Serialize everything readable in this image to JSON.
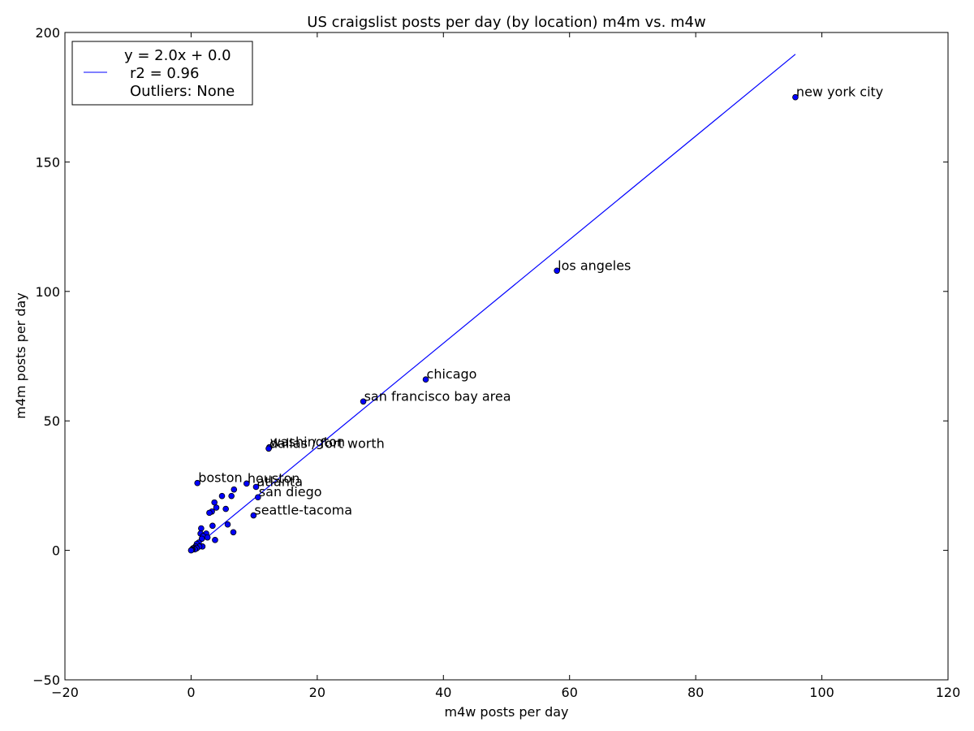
{
  "chart_data": {
    "type": "scatter",
    "title": "US craigslist posts per day (by location) m4m vs. m4w",
    "xlabel": "m4w posts per day",
    "ylabel": "m4m posts per day",
    "xlim": [
      -20,
      120
    ],
    "ylim": [
      -50,
      200
    ],
    "xticks": [
      -20,
      0,
      20,
      40,
      60,
      80,
      100,
      120
    ],
    "yticks": [
      -50,
      0,
      50,
      100,
      150,
      200
    ],
    "grid": false,
    "colors": {
      "points": "#0000ff",
      "line": "#0000ff",
      "point_edge": "#000000"
    },
    "points": [
      {
        "x": 95.8,
        "y": 175.0,
        "label": "new york city"
      },
      {
        "x": 58.0,
        "y": 108.0,
        "label": "los angeles"
      },
      {
        "x": 37.2,
        "y": 66.0,
        "label": "chicago"
      },
      {
        "x": 27.3,
        "y": 57.5,
        "label": "san francisco bay area"
      },
      {
        "x": 12.4,
        "y": 39.8,
        "label": "washington"
      },
      {
        "x": 12.3,
        "y": 39.3,
        "label": "dallas / fort worth"
      },
      {
        "x": 1.0,
        "y": 26.0,
        "label": "boston"
      },
      {
        "x": 8.8,
        "y": 25.8,
        "label": "houston"
      },
      {
        "x": 10.3,
        "y": 24.5,
        "label": "atlanta"
      },
      {
        "x": 10.6,
        "y": 20.5,
        "label": "san diego"
      },
      {
        "x": 9.9,
        "y": 13.5,
        "label": "seattle-tacoma"
      },
      {
        "x": 6.8,
        "y": 23.5,
        "label": ""
      },
      {
        "x": 6.4,
        "y": 21.0,
        "label": ""
      },
      {
        "x": 4.9,
        "y": 21.0,
        "label": ""
      },
      {
        "x": 3.7,
        "y": 18.5,
        "label": ""
      },
      {
        "x": 4.0,
        "y": 16.5,
        "label": ""
      },
      {
        "x": 5.5,
        "y": 16.0,
        "label": ""
      },
      {
        "x": 3.3,
        "y": 15.0,
        "label": ""
      },
      {
        "x": 2.9,
        "y": 14.5,
        "label": ""
      },
      {
        "x": 5.8,
        "y": 10.0,
        "label": ""
      },
      {
        "x": 3.4,
        "y": 9.5,
        "label": ""
      },
      {
        "x": 6.7,
        "y": 7.0,
        "label": ""
      },
      {
        "x": 1.6,
        "y": 8.5,
        "label": ""
      },
      {
        "x": 1.5,
        "y": 6.5,
        "label": ""
      },
      {
        "x": 2.4,
        "y": 6.5,
        "label": ""
      },
      {
        "x": 1.9,
        "y": 5.5,
        "label": ""
      },
      {
        "x": 2.6,
        "y": 5.0,
        "label": ""
      },
      {
        "x": 1.7,
        "y": 4.5,
        "label": ""
      },
      {
        "x": 3.8,
        "y": 4.0,
        "label": ""
      },
      {
        "x": 1.2,
        "y": 3.0,
        "label": ""
      },
      {
        "x": 0.9,
        "y": 2.5,
        "label": ""
      },
      {
        "x": 1.8,
        "y": 1.5,
        "label": ""
      },
      {
        "x": 1.3,
        "y": 1.5,
        "label": ""
      },
      {
        "x": 0.7,
        "y": 1.5,
        "label": ""
      },
      {
        "x": 0.5,
        "y": 1.0,
        "label": ""
      },
      {
        "x": 0.9,
        "y": 0.8,
        "label": ""
      },
      {
        "x": 0.3,
        "y": 0.8,
        "label": ""
      },
      {
        "x": 0.6,
        "y": 0.4,
        "label": ""
      },
      {
        "x": 0.2,
        "y": 0.4,
        "label": ""
      },
      {
        "x": 0.1,
        "y": 0.2,
        "label": ""
      },
      {
        "x": 0.0,
        "y": 0.0,
        "label": ""
      }
    ],
    "fit_line": {
      "slope": 2.0,
      "intercept": 0.0,
      "x_range": [
        0.1,
        95.8
      ]
    },
    "legend": {
      "placement": "top-left",
      "lines": [
        "y = 2.0x + 0.0",
        "r2 = 0.96",
        "Outliers: None"
      ]
    }
  }
}
